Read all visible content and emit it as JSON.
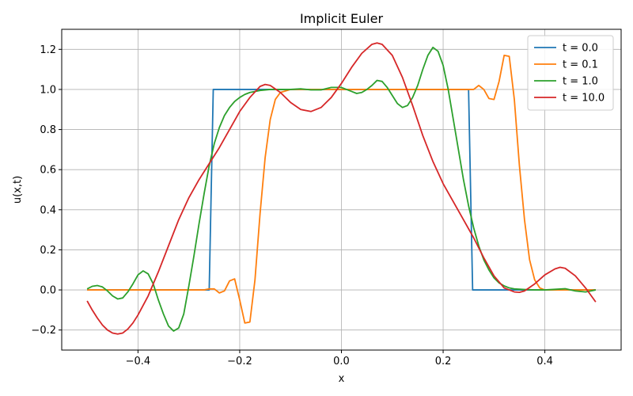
{
  "chart_data": {
    "type": "line",
    "title": "Implicit Euler",
    "xlabel": "x",
    "ylabel": "u(x,t)",
    "xlim": [
      -0.55,
      0.55
    ],
    "ylim": [
      -0.3,
      1.3
    ],
    "xticks": [
      -0.4,
      -0.2,
      0.0,
      0.2,
      0.4
    ],
    "xtick_labels": [
      "−0.4",
      "−0.2",
      "0.0",
      "0.2",
      "0.4"
    ],
    "yticks": [
      -0.2,
      0.0,
      0.2,
      0.4,
      0.6,
      0.8,
      1.0,
      1.2
    ],
    "ytick_labels": [
      "−0.2",
      "0.0",
      "0.2",
      "0.4",
      "0.6",
      "0.8",
      "1.0",
      "1.2"
    ],
    "grid": true,
    "legend_position": "top-right",
    "series": [
      {
        "name": "t = 0.0",
        "color": "#1f77b4",
        "x": [
          -0.5,
          -0.26,
          -0.252,
          0.25,
          0.258,
          0.5
        ],
        "y": [
          0.0,
          0.0,
          1.0,
          1.0,
          0.0,
          0.0
        ]
      },
      {
        "name": "t = 0.1",
        "color": "#ff7f0e",
        "x": [
          -0.5,
          -0.27,
          -0.26,
          -0.25,
          -0.24,
          -0.23,
          -0.22,
          -0.21,
          -0.2,
          -0.19,
          -0.18,
          -0.17,
          -0.16,
          -0.15,
          -0.14,
          -0.13,
          -0.12,
          -0.1,
          0.0,
          0.1,
          0.2,
          0.23,
          0.25,
          0.26,
          0.27,
          0.28,
          0.29,
          0.3,
          0.31,
          0.32,
          0.33,
          0.34,
          0.35,
          0.36,
          0.37,
          0.38,
          0.39,
          0.4,
          0.5
        ],
        "y": [
          0.0,
          0.0,
          0.005,
          0.005,
          -0.015,
          -0.005,
          0.045,
          0.055,
          -0.05,
          -0.165,
          -0.16,
          0.05,
          0.38,
          0.66,
          0.85,
          0.95,
          0.985,
          1.0,
          1.0,
          1.0,
          1.0,
          1.0,
          1.0,
          1.0,
          1.02,
          1.0,
          0.955,
          0.95,
          1.04,
          1.17,
          1.165,
          0.95,
          0.62,
          0.35,
          0.15,
          0.05,
          0.01,
          0.0,
          0.0
        ]
      },
      {
        "name": "t = 1.0",
        "color": "#2ca02c",
        "x": [
          -0.5,
          -0.49,
          -0.48,
          -0.47,
          -0.46,
          -0.45,
          -0.44,
          -0.43,
          -0.42,
          -0.41,
          -0.4,
          -0.39,
          -0.38,
          -0.37,
          -0.36,
          -0.35,
          -0.34,
          -0.33,
          -0.32,
          -0.31,
          -0.3,
          -0.29,
          -0.28,
          -0.27,
          -0.26,
          -0.25,
          -0.24,
          -0.23,
          -0.22,
          -0.21,
          -0.2,
          -0.19,
          -0.18,
          -0.17,
          -0.16,
          -0.14,
          -0.12,
          -0.1,
          -0.08,
          -0.06,
          -0.04,
          -0.02,
          0.0,
          0.01,
          0.02,
          0.03,
          0.04,
          0.05,
          0.06,
          0.07,
          0.08,
          0.09,
          0.1,
          0.11,
          0.12,
          0.13,
          0.14,
          0.15,
          0.16,
          0.17,
          0.18,
          0.19,
          0.2,
          0.21,
          0.22,
          0.23,
          0.24,
          0.25,
          0.26,
          0.27,
          0.28,
          0.29,
          0.3,
          0.31,
          0.32,
          0.33,
          0.34,
          0.36,
          0.38,
          0.4,
          0.42,
          0.44,
          0.46,
          0.48,
          0.5
        ],
        "y": [
          0.005,
          0.018,
          0.022,
          0.015,
          -0.005,
          -0.03,
          -0.045,
          -0.04,
          -0.01,
          0.03,
          0.075,
          0.095,
          0.08,
          0.03,
          -0.05,
          -0.12,
          -0.18,
          -0.205,
          -0.19,
          -0.12,
          0.02,
          0.17,
          0.33,
          0.48,
          0.62,
          0.73,
          0.81,
          0.87,
          0.91,
          0.94,
          0.96,
          0.975,
          0.985,
          0.99,
          0.995,
          1.0,
          1.0,
          1.0,
          1.003,
          0.998,
          0.998,
          1.01,
          1.01,
          1.0,
          0.99,
          0.98,
          0.985,
          1.0,
          1.02,
          1.045,
          1.04,
          1.01,
          0.97,
          0.93,
          0.91,
          0.92,
          0.96,
          1.02,
          1.1,
          1.17,
          1.21,
          1.19,
          1.12,
          1.0,
          0.85,
          0.7,
          0.55,
          0.42,
          0.31,
          0.22,
          0.15,
          0.1,
          0.06,
          0.035,
          0.02,
          0.01,
          0.005,
          0.002,
          0.0,
          0.0,
          0.003,
          0.006,
          -0.005,
          -0.01,
          0.0
        ]
      },
      {
        "name": "t = 10.0",
        "color": "#d62728",
        "x": [
          -0.5,
          -0.49,
          -0.48,
          -0.47,
          -0.46,
          -0.45,
          -0.44,
          -0.43,
          -0.42,
          -0.41,
          -0.4,
          -0.38,
          -0.36,
          -0.34,
          -0.32,
          -0.3,
          -0.28,
          -0.26,
          -0.24,
          -0.22,
          -0.2,
          -0.18,
          -0.16,
          -0.15,
          -0.14,
          -0.12,
          -0.1,
          -0.08,
          -0.06,
          -0.04,
          -0.02,
          0.0,
          0.02,
          0.04,
          0.06,
          0.07,
          0.08,
          0.1,
          0.12,
          0.14,
          0.16,
          0.18,
          0.2,
          0.22,
          0.24,
          0.26,
          0.28,
          0.3,
          0.32,
          0.34,
          0.35,
          0.36,
          0.38,
          0.4,
          0.42,
          0.43,
          0.44,
          0.46,
          0.48,
          0.5
        ],
        "y": [
          -0.055,
          -0.1,
          -0.14,
          -0.175,
          -0.2,
          -0.215,
          -0.22,
          -0.215,
          -0.195,
          -0.165,
          -0.125,
          -0.03,
          0.09,
          0.22,
          0.35,
          0.46,
          0.55,
          0.63,
          0.71,
          0.8,
          0.89,
          0.96,
          1.015,
          1.025,
          1.02,
          0.985,
          0.935,
          0.9,
          0.89,
          0.91,
          0.96,
          1.03,
          1.11,
          1.18,
          1.225,
          1.232,
          1.225,
          1.17,
          1.06,
          0.92,
          0.77,
          0.64,
          0.53,
          0.44,
          0.35,
          0.26,
          0.16,
          0.07,
          0.01,
          -0.01,
          -0.012,
          -0.005,
          0.03,
          0.075,
          0.105,
          0.113,
          0.108,
          0.07,
          0.01,
          -0.06
        ]
      }
    ]
  }
}
